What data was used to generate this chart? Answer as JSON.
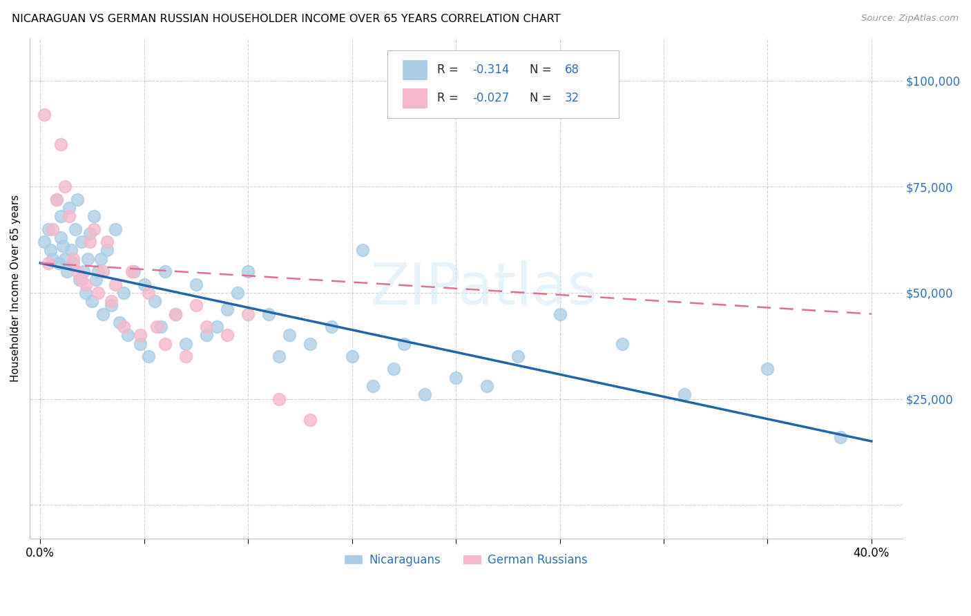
{
  "title": "NICARAGUAN VS GERMAN RUSSIAN HOUSEHOLDER INCOME OVER 65 YEARS CORRELATION CHART",
  "source": "Source: ZipAtlas.com",
  "ylabel": "Householder Income Over 65 years",
  "y_ticks": [
    0,
    25000,
    50000,
    75000,
    100000
  ],
  "y_tick_labels": [
    "",
    "$25,000",
    "$50,000",
    "$75,000",
    "$100,000"
  ],
  "x_ticks": [
    0.0,
    0.05,
    0.1,
    0.15,
    0.2,
    0.25,
    0.3,
    0.35,
    0.4
  ],
  "blue_scatter_color": "#a8cce4",
  "pink_scatter_color": "#f4b8cb",
  "blue_line_color": "#2166ac",
  "pink_line_color": "#e07090",
  "label_color": "#3070b8",
  "text_color": "#222222",
  "grid_color": "#cccccc",
  "blue_intercept": 57000,
  "blue_slope": -105000,
  "pink_intercept": 57000,
  "pink_slope": -30000,
  "watermark_text": "ZIPatlas",
  "blue_scatter_x": [
    0.002,
    0.004,
    0.005,
    0.006,
    0.008,
    0.009,
    0.01,
    0.01,
    0.011,
    0.012,
    0.013,
    0.014,
    0.015,
    0.016,
    0.017,
    0.018,
    0.019,
    0.02,
    0.021,
    0.022,
    0.023,
    0.024,
    0.025,
    0.026,
    0.027,
    0.028,
    0.029,
    0.03,
    0.032,
    0.034,
    0.036,
    0.038,
    0.04,
    0.042,
    0.045,
    0.048,
    0.05,
    0.052,
    0.055,
    0.058,
    0.06,
    0.065,
    0.07,
    0.075,
    0.08,
    0.085,
    0.09,
    0.095,
    0.1,
    0.11,
    0.115,
    0.12,
    0.13,
    0.14,
    0.15,
    0.155,
    0.16,
    0.17,
    0.175,
    0.185,
    0.2,
    0.215,
    0.23,
    0.25,
    0.28,
    0.31,
    0.35,
    0.385
  ],
  "blue_scatter_y": [
    62000,
    65000,
    60000,
    58000,
    72000,
    57000,
    63000,
    68000,
    61000,
    58000,
    55000,
    70000,
    60000,
    57000,
    65000,
    72000,
    53000,
    62000,
    55000,
    50000,
    58000,
    64000,
    48000,
    68000,
    53000,
    55000,
    58000,
    45000,
    60000,
    47000,
    65000,
    43000,
    50000,
    40000,
    55000,
    38000,
    52000,
    35000,
    48000,
    42000,
    55000,
    45000,
    38000,
    52000,
    40000,
    42000,
    46000,
    50000,
    55000,
    45000,
    35000,
    40000,
    38000,
    42000,
    35000,
    60000,
    28000,
    32000,
    38000,
    26000,
    30000,
    28000,
    35000,
    45000,
    38000,
    26000,
    32000,
    16000
  ],
  "pink_scatter_x": [
    0.002,
    0.004,
    0.006,
    0.008,
    0.01,
    0.012,
    0.014,
    0.016,
    0.018,
    0.02,
    0.022,
    0.024,
    0.026,
    0.028,
    0.03,
    0.032,
    0.034,
    0.036,
    0.04,
    0.044,
    0.048,
    0.052,
    0.056,
    0.06,
    0.065,
    0.07,
    0.075,
    0.08,
    0.09,
    0.1,
    0.115,
    0.13
  ],
  "pink_scatter_y": [
    92000,
    57000,
    65000,
    72000,
    85000,
    75000,
    68000,
    58000,
    55000,
    53000,
    52000,
    62000,
    65000,
    50000,
    55000,
    62000,
    48000,
    52000,
    42000,
    55000,
    40000,
    50000,
    42000,
    38000,
    45000,
    35000,
    47000,
    42000,
    40000,
    45000,
    25000,
    20000
  ]
}
